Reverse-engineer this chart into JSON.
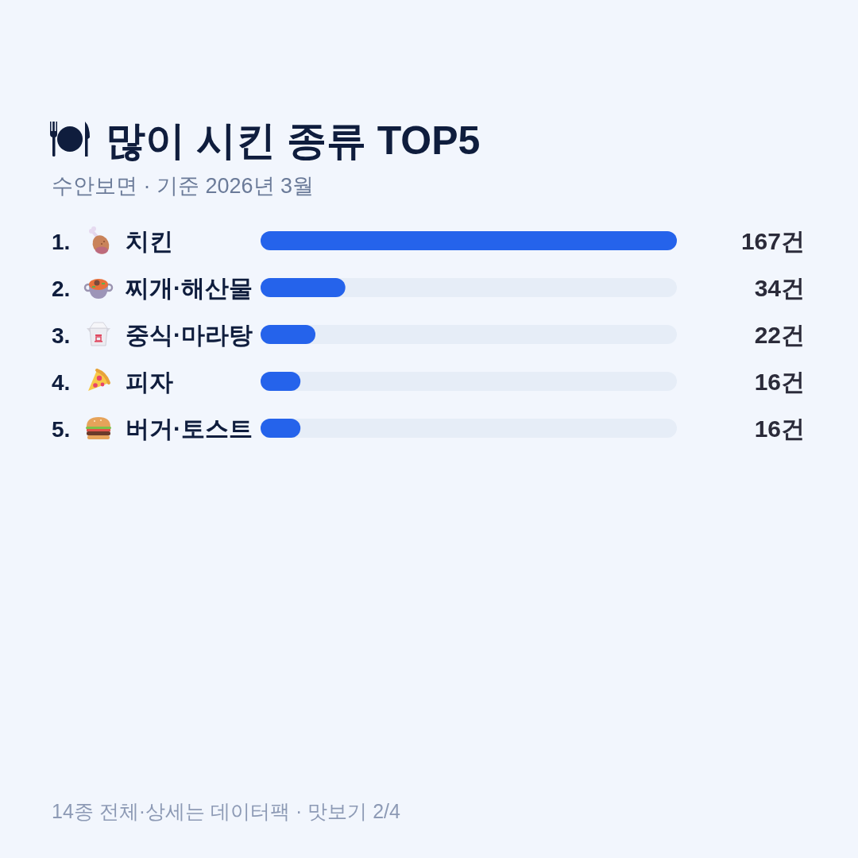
{
  "chart_data": {
    "type": "bar",
    "orientation": "horizontal",
    "title": "많이 시킨 종류 TOP5",
    "subtitle": "수안보면 · 기준 2026년 3월",
    "categories": [
      "1. 치킨",
      "2. 찌개·해산물",
      "3. 중식·마라탕",
      "4. 피자",
      "5. 버거·토스트"
    ],
    "values": [
      167,
      34,
      22,
      16,
      16
    ],
    "color": "#2563eb",
    "value_labels": [
      "167건",
      "34건",
      "22건",
      "16건",
      "16건"
    ],
    "annotations": [
      "14종 전체·상세는 데이터팩 · 맛보기 2/4"
    ]
  }
}
